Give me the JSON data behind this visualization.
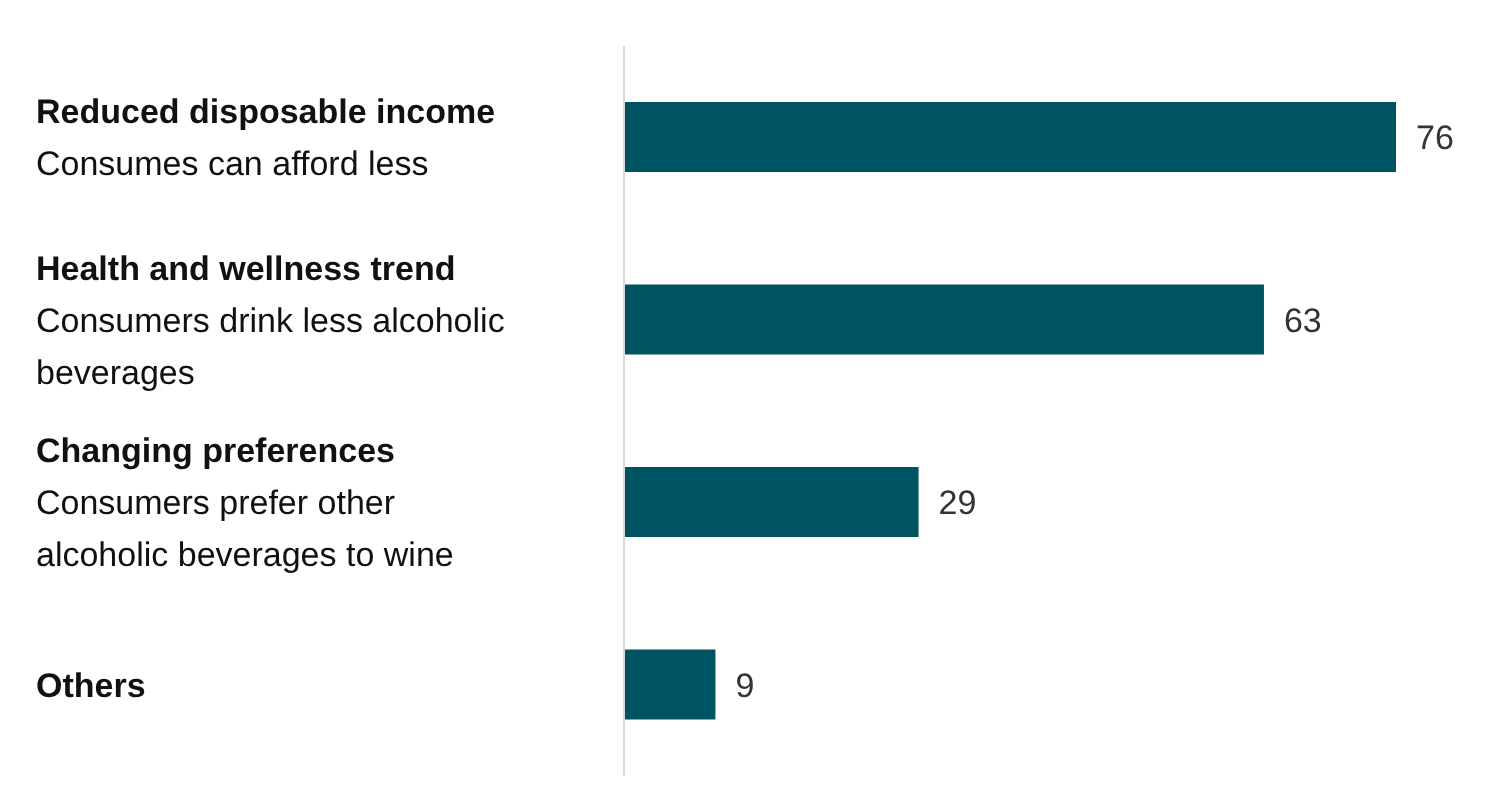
{
  "chart_data": {
    "type": "bar",
    "orientation": "horizontal",
    "categories": [
      "Reduced disposable income\nConsumes can afford less",
      "Health and wellness trend\nConsumers drink less alcoholic\nbeverages",
      "Changing preferences\nConsumers prefer other\nalcoholic beverages to wine",
      "Others"
    ],
    "values": [
      76,
      63,
      29,
      9
    ],
    "color": "#005462",
    "data_labels": true,
    "grid": false,
    "legend": false
  }
}
